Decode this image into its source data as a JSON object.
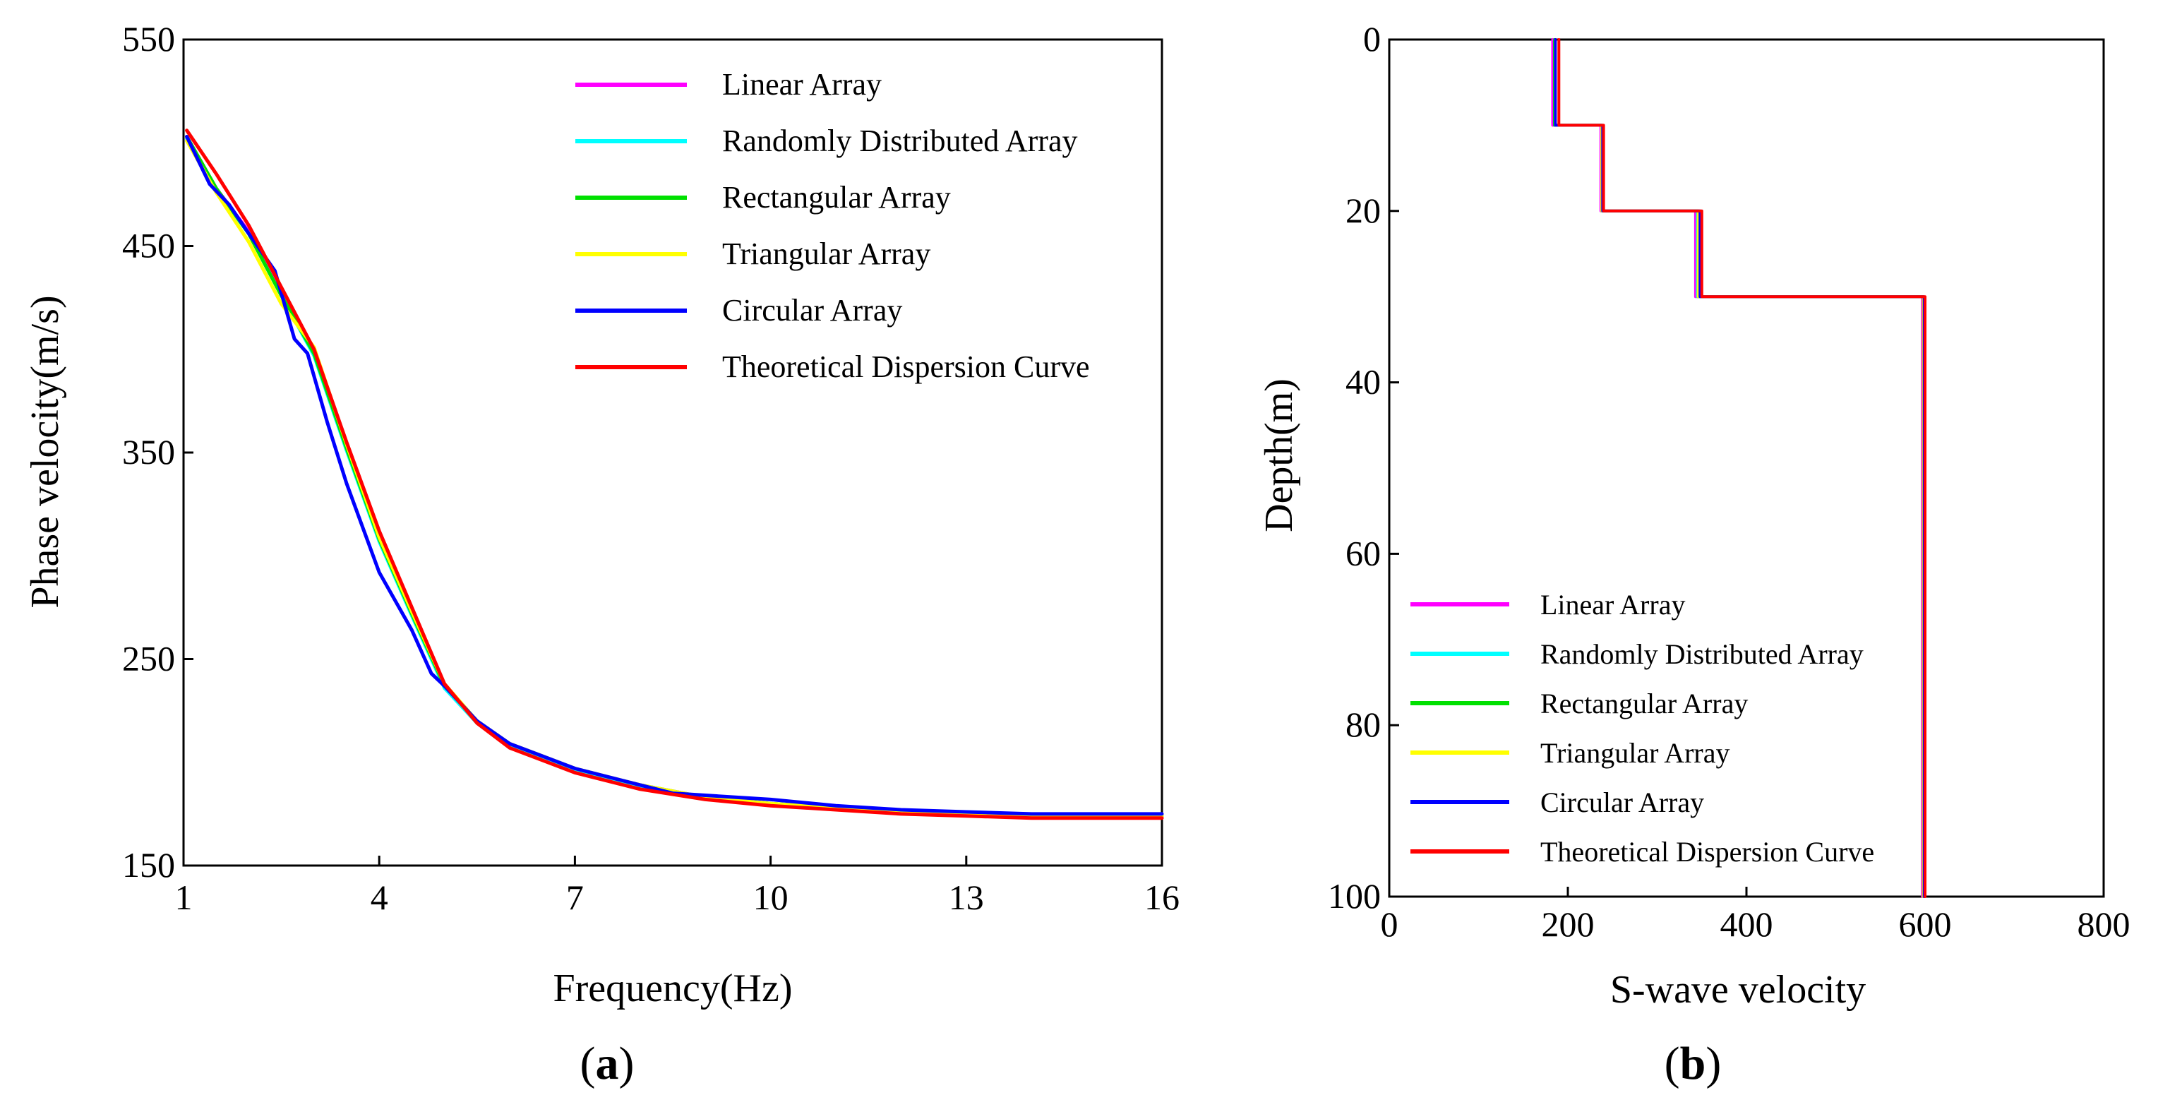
{
  "chart_data": [
    {
      "type": "line",
      "panel_label": "a",
      "xlabel": "Frequency(Hz)",
      "ylabel": "Phase velocity(m/s)",
      "xlim": [
        1,
        16
      ],
      "ylim": [
        150,
        550
      ],
      "xticks": [
        1,
        4,
        7,
        10,
        13,
        16
      ],
      "yticks": [
        150,
        250,
        350,
        450,
        550
      ],
      "legend_position": "top-right",
      "series": [
        {
          "name": "Linear Array",
          "color": "#ff00ff",
          "x": [
            1.05,
            1.5,
            2,
            2.5,
            3,
            3.5,
            4,
            4.5,
            5,
            5.5,
            6,
            7,
            8,
            9,
            10,
            11,
            12,
            13,
            14,
            15,
            16
          ],
          "y": [
            503,
            478,
            457,
            427,
            398,
            352,
            308,
            272,
            237,
            220,
            209,
            197,
            189,
            183,
            180,
            178,
            176,
            175,
            174,
            174,
            174
          ]
        },
        {
          "name": "Randomly Distributed Array",
          "color": "#00ffff",
          "x": [
            1.05,
            1.5,
            2,
            2.5,
            3,
            3.5,
            4,
            4.5,
            5,
            5.5,
            6,
            7,
            8,
            9,
            10,
            11,
            12,
            13,
            14,
            15,
            16
          ],
          "y": [
            502,
            477,
            456,
            426,
            397,
            351,
            307,
            271,
            236,
            219,
            208,
            196,
            188,
            183,
            180,
            178,
            176,
            175,
            174,
            174,
            174
          ]
        },
        {
          "name": "Rectangular Array",
          "color": "#00e000",
          "x": [
            1.05,
            1.5,
            2,
            2.5,
            3,
            3.5,
            4,
            4.5,
            5,
            5.5,
            6,
            7,
            8,
            9,
            10,
            11,
            12,
            13,
            14,
            15,
            16
          ],
          "y": [
            503,
            478,
            456,
            426,
            398,
            352,
            308,
            272,
            237,
            220,
            209,
            197,
            189,
            183,
            180,
            178,
            176,
            175,
            174,
            174,
            174
          ]
        },
        {
          "name": "Triangular Array",
          "color": "#ffff00",
          "x": [
            1.05,
            1.5,
            2,
            2.5,
            3,
            3.5,
            4,
            4.5,
            5,
            5.5,
            6,
            7,
            8,
            9,
            10,
            11,
            12,
            13,
            14,
            15,
            16
          ],
          "y": [
            501,
            476,
            452,
            422,
            401,
            354,
            309,
            273,
            238,
            220,
            209,
            197,
            189,
            183,
            180,
            178,
            176,
            175,
            174,
            174,
            174
          ]
        },
        {
          "name": "Circular Array",
          "color": "#0000ff",
          "x": [
            1.05,
            1.4,
            1.7,
            2.0,
            2.4,
            2.7,
            2.9,
            3.2,
            3.5,
            4.0,
            4.5,
            4.8,
            5.0,
            5.5,
            6,
            7,
            8,
            8.5,
            9,
            10,
            11,
            12,
            13,
            14,
            15,
            16
          ],
          "y": [
            503,
            480,
            470,
            456,
            438,
            405,
            398,
            365,
            335,
            292,
            264,
            243,
            237,
            220,
            209,
            197,
            189,
            185,
            184,
            182,
            179,
            177,
            176,
            175,
            175,
            175
          ]
        },
        {
          "name": "Theoretical Dispersion Curve",
          "color": "#ff0000",
          "x": [
            1.05,
            1.5,
            2,
            2.5,
            3,
            3.5,
            4,
            4.5,
            5,
            5.5,
            6,
            7,
            8,
            9,
            10,
            11,
            12,
            13,
            14,
            15,
            16
          ],
          "y": [
            506,
            485,
            460,
            430,
            400,
            355,
            312,
            275,
            238,
            219,
            207,
            195,
            187,
            182,
            179,
            177,
            175,
            174,
            173,
            173,
            173
          ]
        }
      ]
    },
    {
      "type": "line",
      "panel_label": "b",
      "xlabel": "S-wave velocity",
      "ylabel": "Depth(m)",
      "xlim": [
        0,
        800
      ],
      "ylim": [
        0,
        100
      ],
      "y_inverted": true,
      "xticks": [
        0,
        200,
        400,
        600,
        800
      ],
      "yticks": [
        0,
        20,
        40,
        60,
        80,
        100
      ],
      "legend_position": "bottom-left",
      "series": [
        {
          "name": "Linear Array",
          "color": "#ff00ff",
          "x": [
            183,
            183,
            237,
            237,
            343,
            343,
            597,
            597
          ],
          "y": [
            0,
            10,
            10,
            20,
            20,
            30,
            30,
            100
          ]
        },
        {
          "name": "Randomly Distributed Array",
          "color": "#00ffff",
          "x": [
            185,
            185,
            238,
            238,
            345,
            345,
            598,
            598
          ],
          "y": [
            0,
            10,
            10,
            20,
            20,
            30,
            30,
            100
          ]
        },
        {
          "name": "Rectangular Array",
          "color": "#00e000",
          "x": [
            185,
            185,
            238,
            238,
            346,
            346,
            598,
            598
          ],
          "y": [
            0,
            10,
            10,
            20,
            20,
            30,
            30,
            100
          ]
        },
        {
          "name": "Triangular Array",
          "color": "#ffff00",
          "x": [
            186,
            186,
            238,
            238,
            346,
            346,
            598,
            598
          ],
          "y": [
            0,
            10,
            10,
            20,
            20,
            30,
            30,
            100
          ]
        },
        {
          "name": "Circular Array",
          "color": "#0000ff",
          "x": [
            186,
            186,
            239,
            239,
            348,
            348,
            599,
            599
          ],
          "y": [
            0,
            10,
            10,
            20,
            20,
            30,
            30,
            100
          ]
        },
        {
          "name": "Theoretical Dispersion Curve",
          "color": "#ff0000",
          "x": [
            190,
            190,
            240,
            240,
            350,
            350,
            600,
            600
          ],
          "y": [
            0,
            10,
            10,
            20,
            20,
            30,
            30,
            100
          ]
        }
      ]
    }
  ]
}
